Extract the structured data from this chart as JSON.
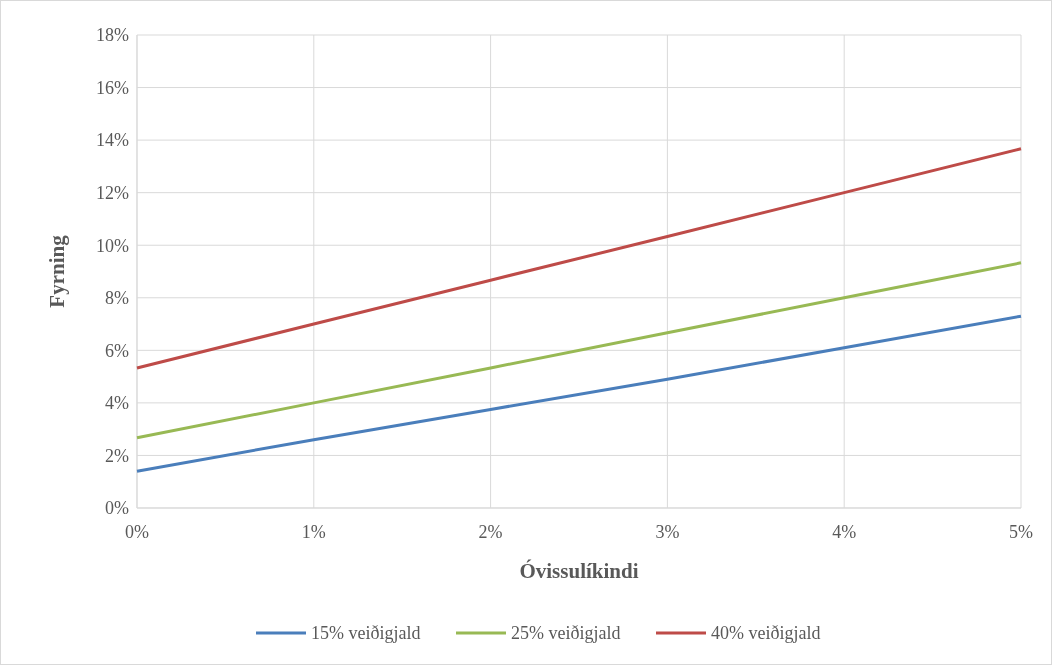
{
  "chart_data": {
    "type": "line",
    "xlabel": "Óvissulíkindi",
    "ylabel": "Fyrning",
    "x": [
      0,
      1,
      2,
      3,
      4,
      5
    ],
    "series": [
      {
        "name": "15% veiðigjald",
        "color": "#4a7ebb",
        "values": [
          1.4,
          2.6,
          3.75,
          4.9,
          6.1,
          7.3
        ]
      },
      {
        "name": "25% veiðigjald",
        "color": "#98b954",
        "values": [
          2.67,
          4.0,
          5.33,
          6.67,
          8.0,
          9.33
        ]
      },
      {
        "name": "40% veiðigjald",
        "color": "#be4b48",
        "values": [
          5.33,
          7.0,
          8.67,
          10.33,
          12.0,
          13.67
        ]
      }
    ],
    "xlim": [
      0,
      5
    ],
    "xticks": [
      {
        "value": 0,
        "label": "0%"
      },
      {
        "value": 1,
        "label": "1%"
      },
      {
        "value": 2,
        "label": "2%"
      },
      {
        "value": 3,
        "label": "3%"
      },
      {
        "value": 4,
        "label": "4%"
      },
      {
        "value": 5,
        "label": "5%"
      }
    ],
    "ylim": [
      0,
      18
    ],
    "yticks": [
      {
        "value": 0,
        "label": "0%"
      },
      {
        "value": 2,
        "label": "2%"
      },
      {
        "value": 4,
        "label": "4%"
      },
      {
        "value": 6,
        "label": "6%"
      },
      {
        "value": 8,
        "label": "8%"
      },
      {
        "value": 10,
        "label": "10%"
      },
      {
        "value": 12,
        "label": "12%"
      },
      {
        "value": 14,
        "label": "14%"
      },
      {
        "value": 16,
        "label": "16%"
      },
      {
        "value": 18,
        "label": "18%"
      }
    ],
    "grid": true,
    "legend": "bottom",
    "marker": "none",
    "line_style": "solid"
  }
}
